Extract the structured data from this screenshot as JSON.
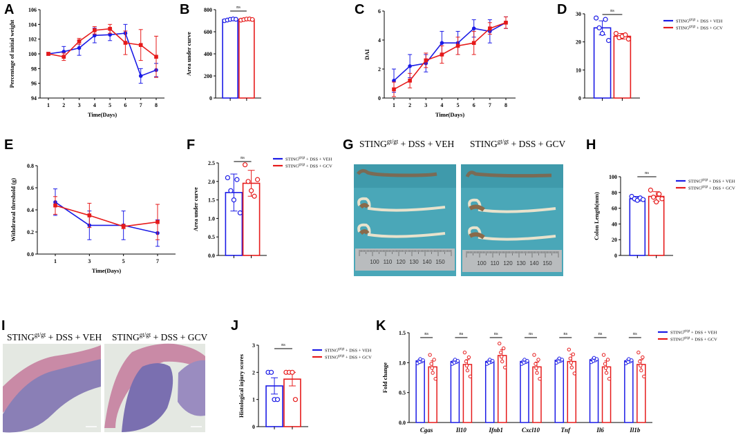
{
  "legend": {
    "veh": "STING gt/gt + DSS + VEH",
    "gcv": "STING gt/gt + DSS + GCV",
    "sup": "gt/gt"
  },
  "colors": {
    "veh": "#1a1ae6",
    "gcv": "#e61a1a"
  },
  "ns_label": "ns",
  "photo_titles": {
    "veh": "STING gt/gt + DSS + VEH",
    "gcv": "STING gt/gt + DSS + GCV"
  },
  "ruler_marks": [
    "100",
    "110",
    "120",
    "130",
    "140",
    "150"
  ],
  "panels": {
    "A": {
      "label": "A"
    },
    "B": {
      "label": "B"
    },
    "C": {
      "label": "C"
    },
    "D": {
      "label": "D"
    },
    "E": {
      "label": "E"
    },
    "F": {
      "label": "F"
    },
    "G": {
      "label": "G"
    },
    "H": {
      "label": "H"
    },
    "I": {
      "label": "I"
    },
    "J": {
      "label": "J"
    },
    "K": {
      "label": "K"
    }
  },
  "chart_data": [
    {
      "id": "A",
      "type": "line",
      "xlabel": "Time(Days)",
      "ylabel": "Percentage of initial weight",
      "x": [
        1,
        2,
        3,
        4,
        5,
        6,
        7,
        8
      ],
      "ylim": [
        94,
        106
      ],
      "yticks": [
        94,
        96,
        98,
        100,
        102,
        104,
        106
      ],
      "series": [
        {
          "name": "VEH",
          "values": [
            100,
            100.3,
            100.8,
            102.5,
            102.6,
            102.8,
            97,
            97.8
          ],
          "err": [
            0.2,
            0.7,
            1.0,
            1.0,
            0.8,
            1.2,
            1.0,
            0.9
          ]
        },
        {
          "name": "GCV",
          "values": [
            100,
            99.6,
            101.7,
            103.2,
            103.4,
            101.5,
            101.2,
            99.6
          ],
          "err": [
            0.2,
            0.5,
            0.4,
            0.5,
            0.6,
            1.6,
            2.1,
            2.8
          ]
        }
      ]
    },
    {
      "id": "B",
      "type": "bar",
      "ylabel": "Area under curve",
      "ylim": [
        0,
        800
      ],
      "yticks": [
        0,
        200,
        400,
        600,
        800
      ],
      "series": [
        {
          "name": "VEH",
          "value": 710,
          "err": 10,
          "points": [
            700,
            706,
            712,
            716,
            713
          ]
        },
        {
          "name": "GCV",
          "value": 712,
          "err": 8,
          "points": [
            705,
            710,
            715,
            716,
            711
          ]
        }
      ]
    },
    {
      "id": "C",
      "type": "line",
      "xlabel": "Time(Days)",
      "ylabel": "DAI",
      "x": [
        1,
        2,
        3,
        4,
        5,
        6,
        7,
        8
      ],
      "ylim": [
        0,
        6
      ],
      "yticks": [
        0,
        2,
        4,
        6
      ],
      "series": [
        {
          "name": "VEH",
          "values": [
            1.2,
            2.2,
            2.4,
            3.8,
            3.8,
            4.8,
            4.6,
            5.2
          ],
          "err": [
            0.8,
            0.8,
            0.6,
            0.8,
            0.8,
            0.6,
            0.8,
            0.4
          ]
        },
        {
          "name": "GCV",
          "values": [
            0.6,
            1.2,
            2.6,
            3.0,
            3.6,
            3.8,
            4.8,
            5.2
          ],
          "err": [
            0.5,
            0.5,
            0.5,
            0.6,
            0.6,
            0.8,
            0.4,
            0.4
          ]
        }
      ]
    },
    {
      "id": "D",
      "type": "bar",
      "ylim": [
        0,
        30
      ],
      "yticks": [
        0,
        10,
        20,
        30
      ],
      "series": [
        {
          "name": "VEH",
          "value": 25,
          "err": 2.5,
          "points": [
            28.5,
            25,
            23,
            28,
            20.5
          ]
        },
        {
          "name": "GCV",
          "value": 22,
          "err": 1.0,
          "points": [
            23,
            21.5,
            22,
            22.5,
            21
          ]
        }
      ]
    },
    {
      "id": "E",
      "type": "line",
      "xlabel": "Time(Days)",
      "ylabel": "Withdrawal threshold (g)",
      "x": [
        1,
        3,
        5,
        7
      ],
      "ylim": [
        0,
        0.8
      ],
      "yticks": [
        0.0,
        0.2,
        0.4,
        0.6,
        0.8
      ],
      "series": [
        {
          "name": "VEH",
          "values": [
            0.47,
            0.26,
            0.26,
            0.19
          ],
          "err": [
            0.12,
            0.13,
            0.13,
            0.12
          ]
        },
        {
          "name": "GCV",
          "values": [
            0.44,
            0.35,
            0.25,
            0.29
          ],
          "err": [
            0.08,
            0.11,
            0.02,
            0.16
          ]
        }
      ]
    },
    {
      "id": "F",
      "type": "bar",
      "ylabel": "Area under curve",
      "ylim": [
        0,
        2.5
      ],
      "yticks": [
        0.0,
        0.5,
        1.0,
        1.5,
        2.0,
        2.5
      ],
      "series": [
        {
          "name": "VEH",
          "value": 1.7,
          "err": 0.5,
          "points": [
            2.1,
            1.75,
            1.5,
            2.05,
            1.15
          ]
        },
        {
          "name": "GCV",
          "value": 1.95,
          "err": 0.35,
          "points": [
            2.45,
            2.0,
            1.75,
            1.6,
            2.05
          ]
        }
      ]
    },
    {
      "id": "H",
      "type": "bar",
      "ylabel": "Colon Length(mm)",
      "ylim": [
        0,
        100
      ],
      "yticks": [
        0,
        20,
        40,
        60,
        80,
        100
      ],
      "series": [
        {
          "name": "VEH",
          "value": 72,
          "err": 3,
          "points": [
            75,
            72,
            70,
            73,
            71
          ]
        },
        {
          "name": "GCV",
          "value": 75,
          "err": 6,
          "points": [
            83,
            74,
            68,
            78,
            72
          ]
        }
      ]
    },
    {
      "id": "J",
      "type": "bar",
      "ylabel": "Histological injury scores",
      "ylim": [
        0,
        3
      ],
      "yticks": [
        0,
        1,
        2,
        3
      ],
      "series": [
        {
          "name": "VEH",
          "value": 1.5,
          "err": 0.3,
          "points": [
            2,
            2,
            1,
            1
          ]
        },
        {
          "name": "GCV",
          "value": 1.75,
          "err": 0.25,
          "points": [
            2,
            2,
            2,
            1
          ]
        }
      ]
    },
    {
      "id": "K",
      "type": "bar",
      "ylabel": "Fold change",
      "categories": [
        "Cgas",
        "Il10",
        "Ifnb1",
        "Cxcl10",
        "Tnf",
        "Il6",
        "Il1b"
      ],
      "ylim": [
        0,
        1.5
      ],
      "yticks": [
        0.0,
        0.5,
        1.0,
        1.5
      ],
      "series": [
        {
          "name": "VEH",
          "values": [
            1.03,
            1.02,
            1.02,
            1.02,
            1.04,
            1.05,
            1.03
          ],
          "err": [
            0.03,
            0.02,
            0.02,
            0.02,
            0.03,
            0.03,
            0.03
          ]
        },
        {
          "name": "GCV",
          "values": [
            0.93,
            0.97,
            1.12,
            0.93,
            1.02,
            0.93,
            0.97
          ],
          "err": [
            0.1,
            0.08,
            0.1,
            0.08,
            0.12,
            0.1,
            0.08
          ]
        }
      ]
    }
  ]
}
